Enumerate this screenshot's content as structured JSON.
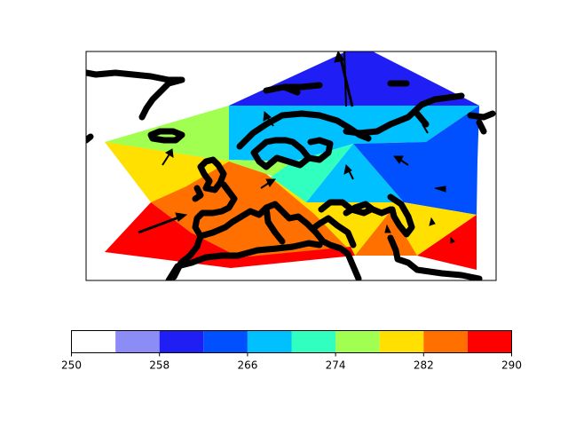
{
  "chart_data": {
    "type": "heatmap",
    "title": "",
    "plot": "filled contour map with wind vectors over Europe",
    "coastlines": "thick black",
    "colorbar": {
      "orientation": "horizontal",
      "placement": "bottom",
      "ticks": [
        "250",
        "258",
        "266",
        "274",
        "282",
        "290"
      ],
      "levels": [
        250,
        254,
        258,
        262,
        266,
        270,
        274,
        278,
        282,
        286,
        290
      ],
      "colors": [
        "#ffffff",
        "#8c8cf7",
        "#1f1ff5",
        "#0050ff",
        "#00c0ff",
        "#30ffc0",
        "#a0ff50",
        "#ffe000",
        "#ff7000",
        "#ff0000"
      ]
    },
    "regions": [
      {
        "level_bin": 2,
        "color": "#1f1ff5"
      },
      {
        "level_bin": 4,
        "color": "#00c0ff"
      },
      {
        "level_bin": 3,
        "color": "#0050ff"
      },
      {
        "level_bin": 6,
        "color": "#a0ff50"
      },
      {
        "level_bin": 5,
        "color": "#30ffc0"
      },
      {
        "level_bin": 7,
        "color": "#ffe000"
      },
      {
        "level_bin": 8,
        "color": "#ff7000"
      },
      {
        "level_bin": 9,
        "color": "#ff0000"
      }
    ],
    "vectors": "wind arrows, northerly to southwesterly"
  }
}
